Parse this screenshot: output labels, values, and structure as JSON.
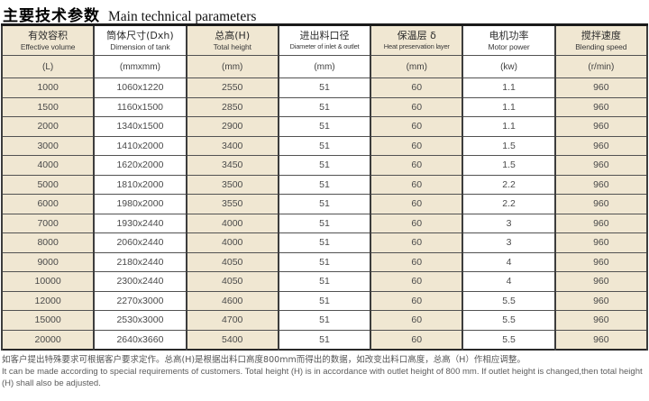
{
  "title": {
    "zh": "主要技术参数",
    "en": "Main technical parameters"
  },
  "table": {
    "columns": [
      {
        "zh": "有效容积",
        "en": "Effective volume",
        "unit": "(L)"
      },
      {
        "zh": "筒体尺寸(Dxh)",
        "en": "Dimension of tank",
        "unit": "(mmxmm)"
      },
      {
        "zh": "总高(H)",
        "en": "Total height",
        "unit": "(mm)"
      },
      {
        "zh": "进出料口径",
        "en": "Diameter of inlet & outlet",
        "unit": "(mm)"
      },
      {
        "zh": "保温层 δ",
        "en": "Heat preservation layer",
        "unit": "(mm)"
      },
      {
        "zh": "电机功率",
        "en": "Motor power",
        "unit": "(kw)"
      },
      {
        "zh": "搅拌速度",
        "en": "Blending speed",
        "unit": "(r/min)"
      }
    ],
    "rows": [
      [
        "1000",
        "1060x1220",
        "2550",
        "51",
        "60",
        "1.1",
        "960"
      ],
      [
        "1500",
        "1160x1500",
        "2850",
        "51",
        "60",
        "1.1",
        "960"
      ],
      [
        "2000",
        "1340x1500",
        "2900",
        "51",
        "60",
        "1.1",
        "960"
      ],
      [
        "3000",
        "1410x2000",
        "3400",
        "51",
        "60",
        "1.5",
        "960"
      ],
      [
        "4000",
        "1620x2000",
        "3450",
        "51",
        "60",
        "1.5",
        "960"
      ],
      [
        "5000",
        "1810x2000",
        "3500",
        "51",
        "60",
        "2.2",
        "960"
      ],
      [
        "6000",
        "1980x2000",
        "3550",
        "51",
        "60",
        "2.2",
        "960"
      ],
      [
        "7000",
        "1930x2440",
        "4000",
        "51",
        "60",
        "3",
        "960"
      ],
      [
        "8000",
        "2060x2440",
        "4000",
        "51",
        "60",
        "3",
        "960"
      ],
      [
        "9000",
        "2180x2440",
        "4050",
        "51",
        "60",
        "4",
        "960"
      ],
      [
        "10000",
        "2300x2440",
        "4050",
        "51",
        "60",
        "4",
        "960"
      ],
      [
        "12000",
        "2270x3000",
        "4600",
        "51",
        "60",
        "5.5",
        "960"
      ],
      [
        "15000",
        "2530x3000",
        "4700",
        "51",
        "60",
        "5.5",
        "960"
      ],
      [
        "20000",
        "2640x3660",
        "5400",
        "51",
        "60",
        "5.5",
        "960"
      ]
    ]
  },
  "footer": {
    "zh": "如客户提出特殊要求可根据客户要求定作。总高(H)是根据出料口高度800mm而得出的数据，如改变出料口高度，总高（H）作相应调整。",
    "en": "It can be made according to special requirements of customers. Total height (H) is in accordance with outlet height of 800 mm. If outlet height is changed,then total height (H) shall also be adjusted."
  },
  "colors": {
    "stripe_beige": "#f0e7d2",
    "grid_line": "#3d3d3d",
    "body_text": "#4a4a4a"
  }
}
